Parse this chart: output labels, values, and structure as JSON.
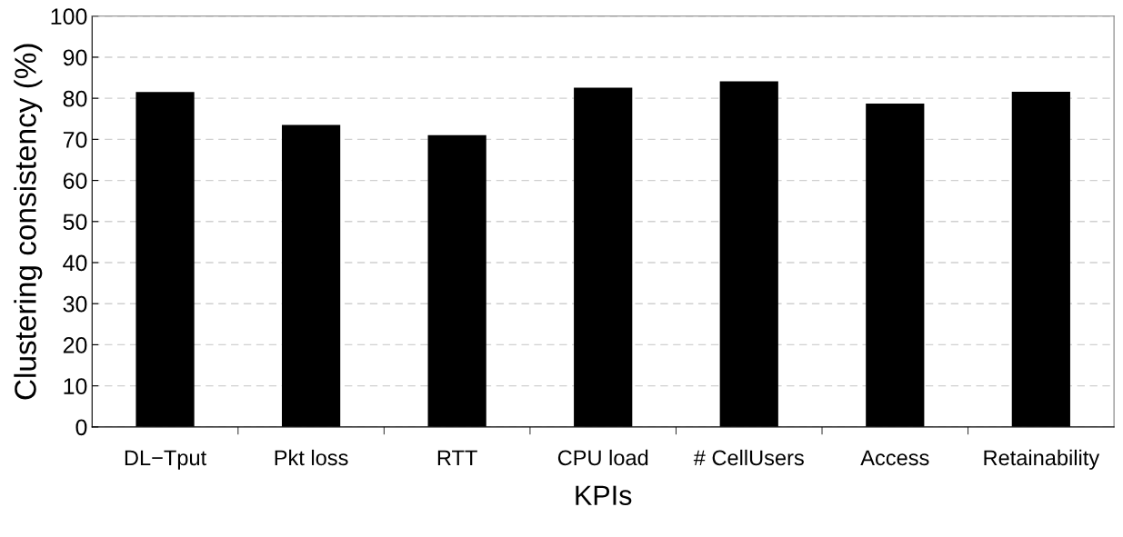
{
  "chart_data": {
    "type": "bar",
    "xlabel": "KPIs",
    "ylabel": "Clustering consistency (%)",
    "categories": [
      "DL−Tput",
      "Pkt loss",
      "RTT",
      "CPU load",
      "# CellUsers",
      "Access",
      "Retainability"
    ],
    "values": [
      81.5,
      73.5,
      71.0,
      82.6,
      84.1,
      78.7,
      81.6
    ],
    "color": "#000000",
    "ylim": [
      0,
      100
    ],
    "yticks": [
      0,
      10,
      20,
      30,
      40,
      50,
      60,
      70,
      80,
      90,
      100
    ],
    "grid": "y"
  }
}
